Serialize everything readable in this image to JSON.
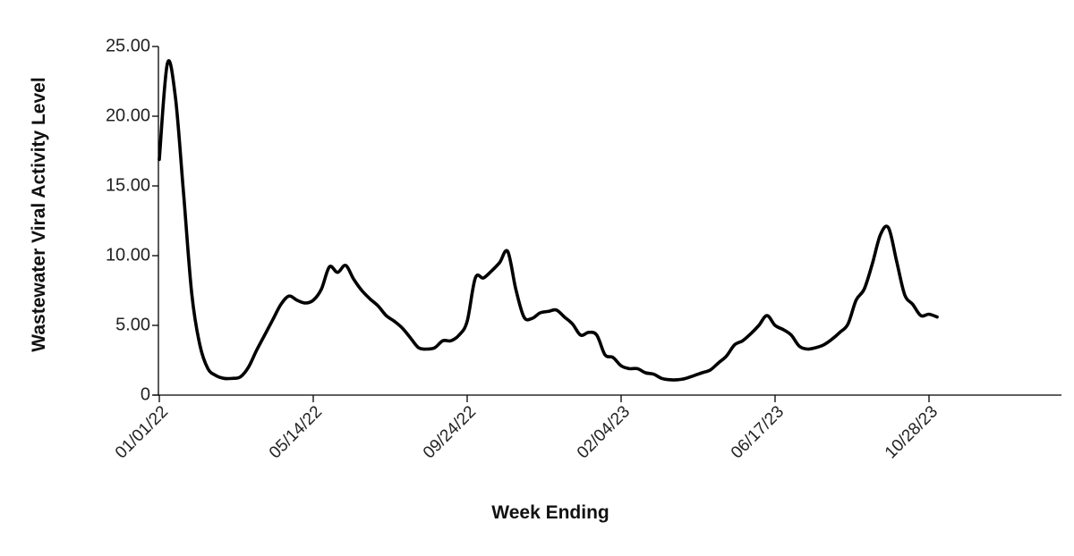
{
  "chart_data": {
    "type": "line",
    "title": "",
    "xlabel": "Week Ending",
    "ylabel": "Wastewater Viral Activity Level",
    "ylim": [
      0,
      25
    ],
    "yticks": [
      0,
      5,
      10,
      15,
      20,
      25
    ],
    "ytick_labels": [
      "0",
      "5.00",
      "10.00",
      "15.00",
      "20.00",
      "25.00"
    ],
    "xticks": [
      "2022-01-01",
      "2022-05-14",
      "2022-09-24",
      "2023-02-04",
      "2023-06-17",
      "2023-10-28"
    ],
    "xtick_labels": [
      "01/01/22",
      "05/14/22",
      "09/24/22",
      "02/04/23",
      "06/17/23",
      "10/28/23"
    ],
    "xlim": [
      "2022-01-01",
      "2024-02-10"
    ],
    "grid": false,
    "series": [
      {
        "color": "#000000",
        "points": [
          [
            "2022-01-01",
            16.9
          ],
          [
            "2022-01-08",
            23.8
          ],
          [
            "2022-01-15",
            21.3
          ],
          [
            "2022-01-22",
            14.4
          ],
          [
            "2022-01-29",
            7.3
          ],
          [
            "2022-02-05",
            3.6
          ],
          [
            "2022-02-12",
            1.9
          ],
          [
            "2022-02-19",
            1.4
          ],
          [
            "2022-02-26",
            1.2
          ],
          [
            "2022-03-05",
            1.2
          ],
          [
            "2022-03-12",
            1.3
          ],
          [
            "2022-03-19",
            2.0
          ],
          [
            "2022-03-26",
            3.2
          ],
          [
            "2022-04-02",
            4.3
          ],
          [
            "2022-04-09",
            5.4
          ],
          [
            "2022-04-16",
            6.5
          ],
          [
            "2022-04-23",
            7.1
          ],
          [
            "2022-04-30",
            6.8
          ],
          [
            "2022-05-07",
            6.6
          ],
          [
            "2022-05-14",
            6.8
          ],
          [
            "2022-05-21",
            7.6
          ],
          [
            "2022-05-28",
            9.2
          ],
          [
            "2022-06-04",
            8.8
          ],
          [
            "2022-06-11",
            9.3
          ],
          [
            "2022-06-18",
            8.3
          ],
          [
            "2022-06-25",
            7.5
          ],
          [
            "2022-07-02",
            6.9
          ],
          [
            "2022-07-09",
            6.4
          ],
          [
            "2022-07-16",
            5.7
          ],
          [
            "2022-07-23",
            5.3
          ],
          [
            "2022-07-30",
            4.8
          ],
          [
            "2022-08-06",
            4.1
          ],
          [
            "2022-08-13",
            3.4
          ],
          [
            "2022-08-20",
            3.3
          ],
          [
            "2022-08-27",
            3.4
          ],
          [
            "2022-09-03",
            3.9
          ],
          [
            "2022-09-10",
            3.9
          ],
          [
            "2022-09-17",
            4.3
          ],
          [
            "2022-09-24",
            5.3
          ],
          [
            "2022-10-01",
            8.4
          ],
          [
            "2022-10-08",
            8.4
          ],
          [
            "2022-10-15",
            8.9
          ],
          [
            "2022-10-22",
            9.5
          ],
          [
            "2022-10-29",
            10.3
          ],
          [
            "2022-11-05",
            7.6
          ],
          [
            "2022-11-12",
            5.6
          ],
          [
            "2022-11-19",
            5.5
          ],
          [
            "2022-11-26",
            5.9
          ],
          [
            "2022-12-03",
            6.0
          ],
          [
            "2022-12-10",
            6.1
          ],
          [
            "2022-12-17",
            5.6
          ],
          [
            "2022-12-24",
            5.1
          ],
          [
            "2022-12-31",
            4.3
          ],
          [
            "2023-01-07",
            4.5
          ],
          [
            "2023-01-14",
            4.3
          ],
          [
            "2023-01-21",
            2.9
          ],
          [
            "2023-01-28",
            2.7
          ],
          [
            "2023-02-04",
            2.1
          ],
          [
            "2023-02-11",
            1.9
          ],
          [
            "2023-02-18",
            1.9
          ],
          [
            "2023-02-25",
            1.6
          ],
          [
            "2023-03-04",
            1.5
          ],
          [
            "2023-03-11",
            1.2
          ],
          [
            "2023-03-18",
            1.1
          ],
          [
            "2023-03-25",
            1.1
          ],
          [
            "2023-04-01",
            1.2
          ],
          [
            "2023-04-08",
            1.4
          ],
          [
            "2023-04-15",
            1.6
          ],
          [
            "2023-04-22",
            1.8
          ],
          [
            "2023-04-29",
            2.3
          ],
          [
            "2023-05-06",
            2.8
          ],
          [
            "2023-05-13",
            3.6
          ],
          [
            "2023-05-20",
            3.9
          ],
          [
            "2023-05-27",
            4.4
          ],
          [
            "2023-06-03",
            5.0
          ],
          [
            "2023-06-10",
            5.7
          ],
          [
            "2023-06-17",
            5.0
          ],
          [
            "2023-06-24",
            4.7
          ],
          [
            "2023-07-01",
            4.3
          ],
          [
            "2023-07-08",
            3.5
          ],
          [
            "2023-07-15",
            3.3
          ],
          [
            "2023-07-22",
            3.4
          ],
          [
            "2023-07-29",
            3.6
          ],
          [
            "2023-08-05",
            4.0
          ],
          [
            "2023-08-12",
            4.5
          ],
          [
            "2023-08-19",
            5.1
          ],
          [
            "2023-08-26",
            6.8
          ],
          [
            "2023-09-02",
            7.6
          ],
          [
            "2023-09-09",
            9.4
          ],
          [
            "2023-09-16",
            11.5
          ],
          [
            "2023-09-23",
            12.0
          ],
          [
            "2023-09-30",
            9.6
          ],
          [
            "2023-10-07",
            7.2
          ],
          [
            "2023-10-14",
            6.5
          ],
          [
            "2023-10-21",
            5.7
          ],
          [
            "2023-10-28",
            5.8
          ],
          [
            "2023-11-04",
            5.6
          ]
        ]
      }
    ]
  }
}
